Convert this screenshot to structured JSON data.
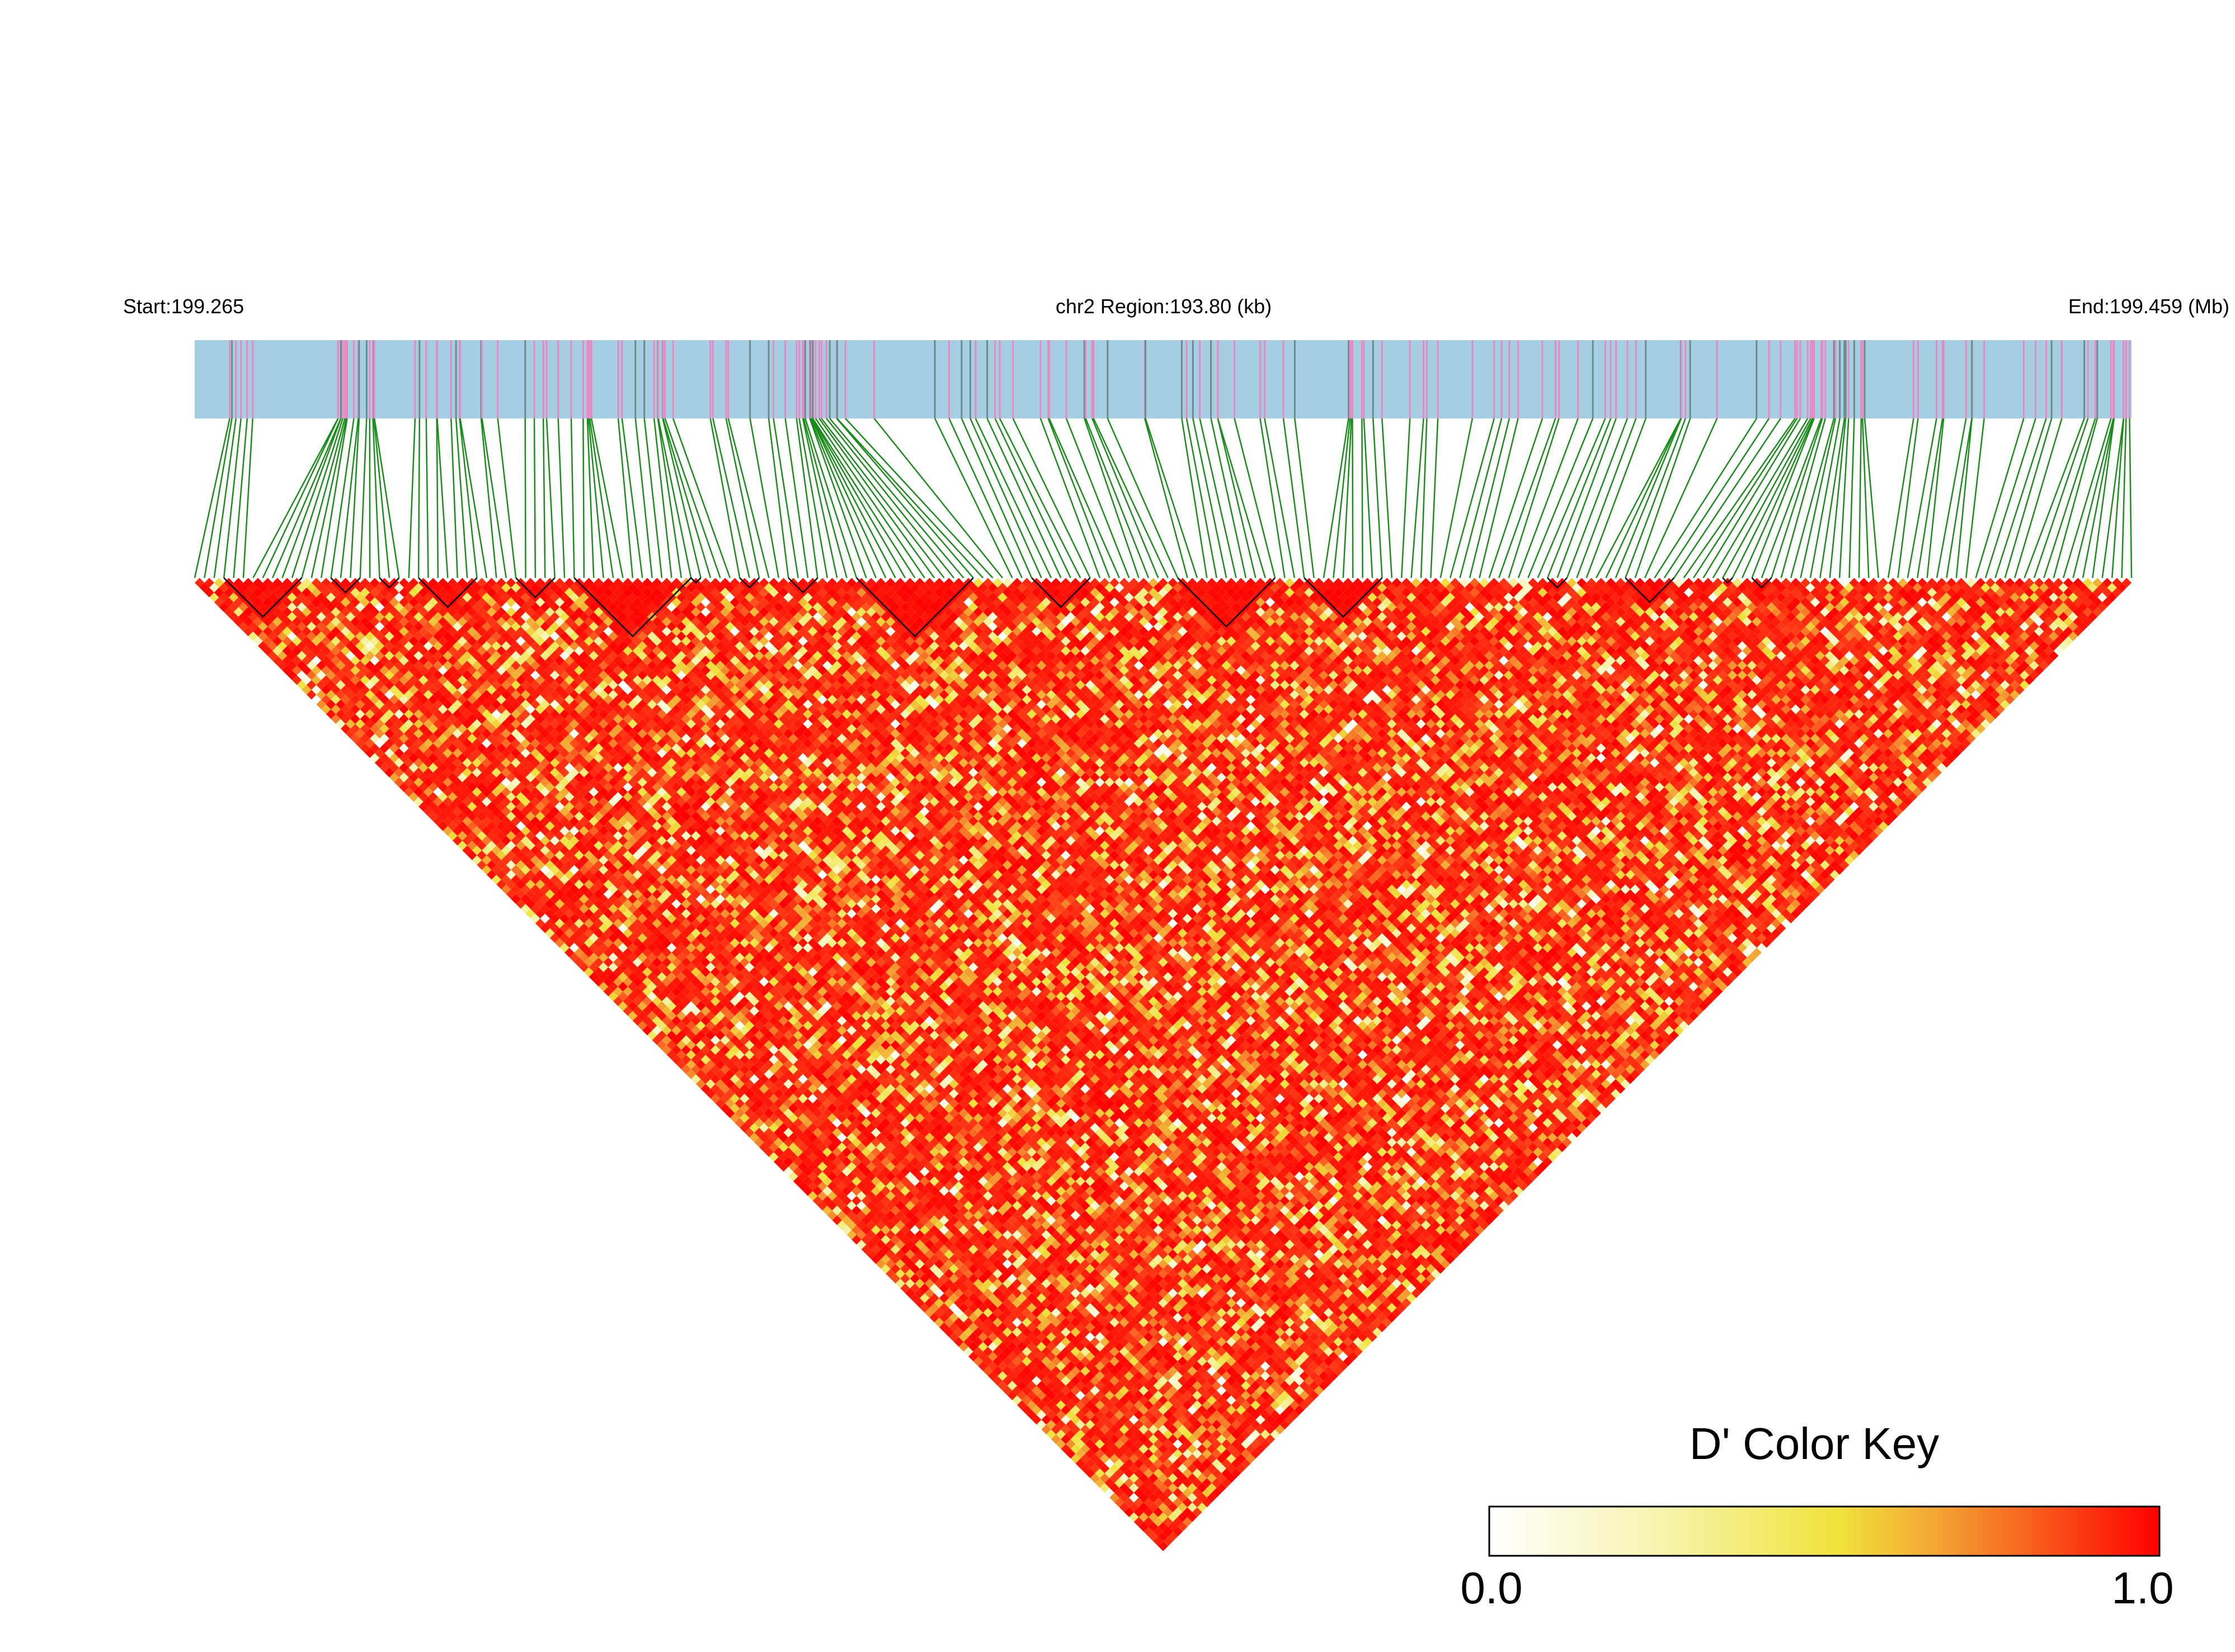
{
  "header": {
    "start_label": "Start:199.265",
    "region_label": "chr2 Region:193.80 (kb)",
    "end_label": "End:199.459 (Mb)"
  },
  "legend": {
    "title": "D' Color Key",
    "min_label": "0.0",
    "max_label": "1.0"
  },
  "colors": {
    "track_background": "#a6cee3",
    "snp_marker_pink": "#e78ac3",
    "snp_marker_gray": "#6e8b8b",
    "connector_green": "#1a8c1a",
    "block_outline": "#000000",
    "scale": [
      "#ffffff",
      "#f7f4b0",
      "#f0e33d",
      "#f3a032",
      "#ff0000"
    ]
  },
  "chart_data": {
    "type": "heatmap",
    "title": "",
    "subtitle": "chr2 Region:193.80 (kb)",
    "chromosome": "chr2",
    "region_start_mb": 199.265,
    "region_end_mb": 199.459,
    "region_length_kb": 193.8,
    "n_snps": 200,
    "value_name": "D'",
    "value_range": [
      0.0,
      1.0
    ],
    "layout": "triangular LD heatmap, pairwise cells rotated 45 degrees below SNP track",
    "legend_position": "bottom-right",
    "snp_position_fractions_note": "SNP positions along region (0 = start, 1 = end), estimated from marker track",
    "snp_clusters": [
      {
        "center": 0.03,
        "spread": 0.012,
        "count": 6
      },
      {
        "center": 0.085,
        "spread": 0.012,
        "count": 16
      },
      {
        "center": 0.17,
        "spread": 0.06,
        "count": 26
      },
      {
        "center": 0.28,
        "spread": 0.05,
        "count": 22
      },
      {
        "center": 0.335,
        "spread": 0.025,
        "count": 14
      },
      {
        "center": 0.43,
        "spread": 0.05,
        "count": 16
      },
      {
        "center": 0.5,
        "spread": 0.04,
        "count": 12
      },
      {
        "center": 0.6,
        "spread": 0.05,
        "count": 16
      },
      {
        "center": 0.7,
        "spread": 0.05,
        "count": 16
      },
      {
        "center": 0.8,
        "spread": 0.04,
        "count": 14
      },
      {
        "center": 0.845,
        "spread": 0.02,
        "count": 16
      },
      {
        "center": 0.93,
        "spread": 0.05,
        "count": 16
      },
      {
        "center": 0.99,
        "spread": 0.01,
        "count": 10
      }
    ],
    "ld_blocks_snp_index_ranges": [
      [
        3,
        11
      ],
      [
        14,
        17
      ],
      [
        19,
        21
      ],
      [
        23,
        29
      ],
      [
        33,
        37
      ],
      [
        39,
        51
      ],
      [
        51,
        52
      ],
      [
        56,
        58
      ],
      [
        61,
        64
      ],
      [
        68,
        80
      ],
      [
        86,
        92
      ],
      [
        101,
        111
      ],
      [
        114,
        122
      ],
      [
        139,
        141
      ],
      [
        147,
        152
      ],
      [
        157,
        158
      ],
      [
        160,
        162
      ]
    ],
    "seed": 20240517
  }
}
